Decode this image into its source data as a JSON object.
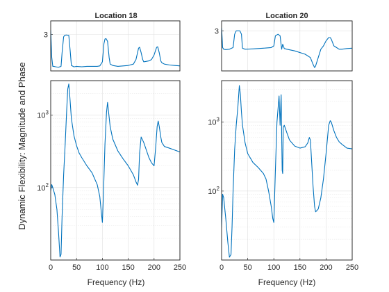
{
  "figure": {
    "ylabel": "Dynamic Flexibility: Magnitude and Phase",
    "line_color": "#0072bd"
  },
  "chart_data": [
    {
      "id": "phase-18",
      "type": "line",
      "title": "Location 18",
      "xlabel": "",
      "xlim": [
        0,
        250
      ],
      "ylim": [
        2.2,
        3.3
      ],
      "yticks": [
        3
      ],
      "ytick_labels": [
        "3"
      ],
      "xticks": [],
      "x": [
        0,
        2,
        4,
        6,
        10,
        15,
        20,
        22,
        25,
        27,
        30,
        35,
        38,
        40,
        45,
        50,
        60,
        70,
        80,
        90,
        95,
        100,
        103,
        105,
        107,
        110,
        113,
        115,
        120,
        130,
        140,
        150,
        160,
        165,
        170,
        172,
        175,
        178,
        180,
        190,
        195,
        200,
        205,
        207,
        210,
        213,
        215,
        220,
        230,
        240,
        250
      ],
      "values": [
        3.1,
        2.5,
        2.3,
        2.3,
        2.29,
        2.28,
        2.3,
        2.6,
        2.95,
        2.98,
        2.99,
        2.98,
        2.6,
        2.32,
        2.29,
        2.3,
        2.29,
        2.3,
        2.3,
        2.3,
        2.31,
        2.4,
        2.8,
        2.9,
        2.91,
        2.85,
        2.5,
        2.35,
        2.32,
        2.3,
        2.31,
        2.32,
        2.35,
        2.45,
        2.7,
        2.72,
        2.6,
        2.45,
        2.4,
        2.42,
        2.45,
        2.55,
        2.72,
        2.73,
        2.6,
        2.42,
        2.38,
        2.35,
        2.33,
        2.32,
        2.31
      ]
    },
    {
      "id": "phase-20",
      "type": "line",
      "title": "Location 20",
      "xlabel": "",
      "xlim": [
        0,
        250
      ],
      "ylim": [
        1.8,
        3.3
      ],
      "yticks": [
        3
      ],
      "ytick_labels": [
        "3"
      ],
      "xticks": [],
      "x": [
        0,
        2,
        4,
        8,
        15,
        22,
        25,
        28,
        30,
        35,
        38,
        40,
        45,
        60,
        80,
        95,
        100,
        103,
        108,
        112,
        115,
        117,
        120,
        125,
        140,
        160,
        170,
        175,
        178,
        180,
        185,
        190,
        195,
        200,
        205,
        208,
        210,
        215,
        220,
        225,
        230,
        240,
        250
      ],
      "values": [
        3.1,
        2.5,
        2.45,
        2.44,
        2.45,
        2.5,
        2.9,
        3.0,
        3.0,
        3.0,
        2.9,
        2.48,
        2.45,
        2.46,
        2.48,
        2.5,
        2.55,
        2.85,
        2.9,
        2.85,
        2.45,
        2.6,
        2.47,
        2.45,
        2.4,
        2.3,
        2.2,
        2.0,
        1.9,
        1.95,
        2.2,
        2.45,
        2.55,
        2.7,
        2.8,
        2.8,
        2.75,
        2.55,
        2.5,
        2.45,
        2.45,
        2.47,
        2.48
      ]
    },
    {
      "id": "magnitude-18",
      "type": "line",
      "title": "",
      "xlabel": "Frequency (Hz)",
      "yscale": "log",
      "xlim": [
        0,
        250
      ],
      "ylim": [
        10,
        3000
      ],
      "xticks": [
        0,
        50,
        100,
        150,
        200,
        250
      ],
      "xtick_labels": [
        "0",
        "50",
        "100",
        "150",
        "200",
        "250"
      ],
      "yticks": [
        100,
        1000
      ],
      "ytick_labels": [
        "10^2",
        "10^3"
      ],
      "x": [
        0,
        2,
        4,
        8,
        12,
        15,
        18,
        20,
        22,
        25,
        28,
        31,
        33,
        35,
        37,
        40,
        45,
        50,
        55,
        60,
        70,
        80,
        90,
        95,
        98,
        100,
        102,
        105,
        108,
        110,
        112,
        115,
        120,
        130,
        140,
        150,
        160,
        165,
        168,
        170,
        172,
        175,
        180,
        190,
        195,
        200,
        203,
        206,
        208,
        210,
        213,
        215,
        220,
        230,
        240,
        250
      ],
      "values": [
        90,
        110,
        100,
        80,
        50,
        25,
        11,
        12,
        40,
        150,
        400,
        1200,
        2300,
        2700,
        1800,
        900,
        520,
        380,
        300,
        260,
        200,
        160,
        110,
        75,
        45,
        33,
        80,
        400,
        1100,
        1500,
        1100,
        700,
        470,
        320,
        250,
        200,
        150,
        120,
        108,
        130,
        300,
        500,
        420,
        260,
        220,
        200,
        350,
        700,
        830,
        700,
        500,
        420,
        370,
        350,
        330,
        310
      ]
    },
    {
      "id": "magnitude-20",
      "type": "line",
      "title": "",
      "xlabel": "Frequency (Hz)",
      "yscale": "log",
      "xlim": [
        0,
        250
      ],
      "ylim": [
        10,
        4000
      ],
      "xticks": [
        0,
        50,
        100,
        150,
        200,
        250
      ],
      "xtick_labels": [
        "0",
        "50",
        "100",
        "150",
        "200",
        "250"
      ],
      "yticks": [
        100,
        1000
      ],
      "ytick_labels": [
        "10^2",
        "10^3"
      ],
      "x": [
        0,
        2,
        4,
        8,
        12,
        15,
        18,
        20,
        22,
        25,
        28,
        31,
        34,
        36,
        38,
        40,
        45,
        50,
        60,
        70,
        80,
        85,
        90,
        95,
        98,
        100,
        103,
        106,
        110,
        112,
        114,
        116,
        117,
        118,
        120,
        125,
        130,
        140,
        150,
        160,
        165,
        168,
        170,
        172,
        175,
        178,
        180,
        185,
        190,
        195,
        200,
        205,
        208,
        210,
        215,
        220,
        225,
        230,
        240,
        250
      ],
      "values": [
        30,
        90,
        80,
        40,
        18,
        11,
        12,
        30,
        100,
        400,
        900,
        1600,
        3400,
        2500,
        1400,
        900,
        500,
        350,
        260,
        220,
        180,
        150,
        100,
        60,
        40,
        35,
        200,
        1000,
        2400,
        900,
        2500,
        200,
        180,
        850,
        900,
        700,
        550,
        450,
        420,
        440,
        500,
        600,
        550,
        300,
        120,
        60,
        50,
        55,
        80,
        150,
        350,
        900,
        1050,
        1000,
        750,
        600,
        520,
        480,
        420,
        410
      ]
    }
  ]
}
